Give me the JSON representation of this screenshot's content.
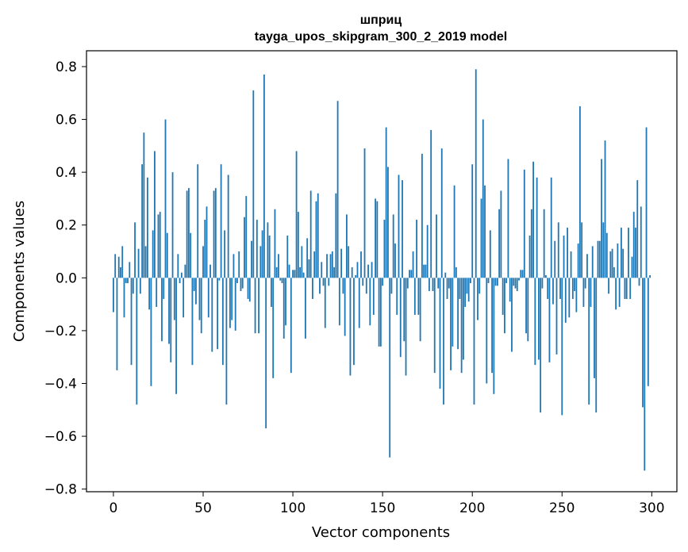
{
  "chart_data": {
    "type": "bar",
    "title": "шприц",
    "subtitle": "tayga_upos_skipgram_300_2_2019 model",
    "xlabel": "Vector components",
    "ylabel": "Components values",
    "xlim": [
      -15,
      314
    ],
    "ylim": [
      -0.81,
      0.86
    ],
    "x_ticks": [
      0,
      50,
      100,
      150,
      200,
      250,
      300
    ],
    "x_tick_labels": [
      "0",
      "50",
      "100",
      "150",
      "200",
      "250",
      "300"
    ],
    "y_ticks": [
      -0.8,
      -0.6,
      -0.4,
      -0.2,
      0.0,
      0.2,
      0.4,
      0.6,
      0.8
    ],
    "y_tick_labels": [
      "−0.8",
      "−0.6",
      "−0.4",
      "−0.2",
      "0.0",
      "0.2",
      "0.4",
      "0.6",
      "0.8"
    ],
    "grid": false,
    "bar_color": "#1f77b4",
    "series": [
      {
        "values": [
          -0.13,
          0.09,
          -0.35,
          0.08,
          0.04,
          0.12,
          -0.15,
          -0.02,
          -0.02,
          0.06,
          -0.33,
          -0.06,
          0.21,
          -0.48,
          0.11,
          -0.06,
          0.43,
          0.55,
          0.12,
          0.38,
          -0.12,
          -0.41,
          0.18,
          0.48,
          -0.11,
          0.24,
          0.25,
          -0.24,
          -0.08,
          0.6,
          0.17,
          -0.25,
          -0.32,
          0.4,
          -0.16,
          -0.44,
          0.09,
          -0.02,
          0.02,
          -0.15,
          0.05,
          0.33,
          0.34,
          0.17,
          -0.33,
          -0.05,
          -0.1,
          0.43,
          -0.16,
          -0.21,
          0.12,
          0.22,
          0.27,
          -0.15,
          0.05,
          -0.28,
          0.33,
          0.34,
          -0.27,
          -0.01,
          0.43,
          -0.33,
          0.18,
          -0.48,
          0.39,
          -0.19,
          -0.16,
          0.09,
          -0.2,
          -0.02,
          0.1,
          -0.05,
          -0.04,
          0.23,
          0.31,
          -0.08,
          -0.09,
          0.14,
          0.71,
          -0.21,
          0.22,
          -0.21,
          0.12,
          0.18,
          0.77,
          -0.57,
          0.21,
          0.16,
          -0.11,
          -0.38,
          0.26,
          0.04,
          0.09,
          -0.01,
          -0.02,
          -0.23,
          -0.18,
          0.16,
          0.05,
          -0.36,
          0.03,
          0.03,
          0.48,
          0.25,
          0.04,
          0.12,
          0.02,
          -0.23,
          0.15,
          0.07,
          0.33,
          -0.08,
          0.1,
          0.29,
          0.32,
          -0.06,
          0.06,
          -0.03,
          -0.19,
          0.09,
          -0.03,
          0.09,
          0.1,
          0.04,
          0.32,
          0.67,
          -0.18,
          0.11,
          -0.06,
          -0.22,
          0.24,
          0.12,
          -0.37,
          0.04,
          -0.33,
          0.01,
          0.06,
          -0.19,
          0.1,
          -0.03,
          0.49,
          -0.06,
          0.05,
          -0.18,
          0.06,
          -0.14,
          0.3,
          0.29,
          -0.26,
          -0.26,
          -0.03,
          0.22,
          0.57,
          0.42,
          -0.68,
          -0.06,
          0.24,
          0.13,
          -0.14,
          0.39,
          -0.3,
          0.37,
          -0.24,
          -0.37,
          -0.04,
          0.03,
          0.03,
          0.1,
          -0.14,
          0.22,
          -0.14,
          -0.24,
          0.47,
          0.05,
          0.05,
          0.2,
          -0.05,
          0.56,
          -0.05,
          -0.36,
          0.24,
          -0.04,
          -0.42,
          0.49,
          -0.48,
          0.02,
          -0.08,
          -0.04,
          -0.35,
          -0.26,
          0.35,
          0.04,
          -0.27,
          -0.08,
          -0.36,
          -0.31,
          -0.11,
          -0.06,
          -0.09,
          -0.02,
          0.43,
          -0.48,
          0.79,
          -0.16,
          -0.06,
          0.3,
          0.6,
          0.35,
          -0.4,
          -0.02,
          0.18,
          -0.36,
          -0.44,
          -0.03,
          -0.03,
          0.26,
          0.33,
          -0.14,
          -0.21,
          -0.02,
          0.45,
          -0.09,
          -0.28,
          -0.03,
          -0.04,
          -0.05,
          -0.01,
          0.03,
          0.03,
          0.41,
          -0.21,
          -0.24,
          0.16,
          0.26,
          0.44,
          -0.33,
          0.38,
          -0.31,
          -0.51,
          -0.04,
          0.26,
          0.01,
          -0.08,
          -0.32,
          0.38,
          -0.1,
          0.14,
          -0.29,
          0.21,
          -0.08,
          -0.52,
          0.16,
          -0.17,
          0.19,
          -0.15,
          0.1,
          -0.08,
          -0.05,
          -0.13,
          0.13,
          0.65,
          0.21,
          -0.11,
          -0.04,
          0.09,
          -0.48,
          -0.11,
          0.12,
          -0.38,
          -0.51,
          0.14,
          0.14,
          0.45,
          0.21,
          0.52,
          0.17,
          -0.06,
          0.1,
          0.11,
          0.04,
          -0.12,
          0.13,
          -0.11,
          0.19,
          0.11,
          -0.08,
          -0.08,
          0.19,
          -0.08,
          0.08,
          0.25,
          0.19,
          0.37,
          -0.03,
          0.27,
          -0.49,
          -0.73,
          0.57,
          -0.41,
          0.01
        ]
      }
    ]
  }
}
